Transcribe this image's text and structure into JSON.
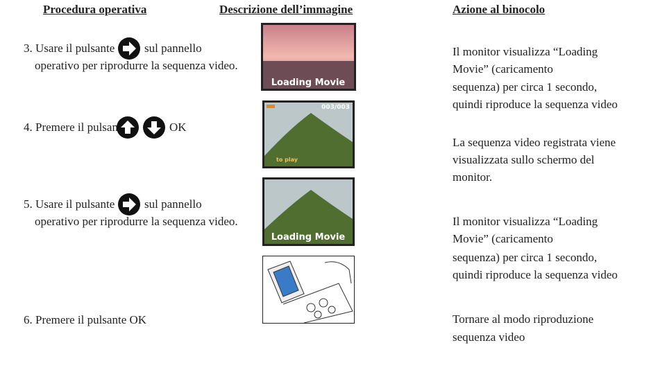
{
  "header": {
    "col1": "Procedura operativa",
    "col2": "Descrizione dell’immagine",
    "col3": "Azione al binocolo"
  },
  "rows": [
    {
      "step": [
        "3. Usare il pulsante",
        "sul pannello",
        "operativo per riprodurre la sequenza video."
      ],
      "image_text": [
        "Loading Movie"
      ],
      "action": [
        "Il monitor visualizza “Loading",
        "Movie” (caricamento",
        "sequenza) per circa 1 secondo,",
        "quindi riproduce la sequenza video"
      ]
    },
    {
      "step": [
        "4. Premere il pulsante",
        "OK"
      ],
      "image_text": [
        "003/003",
        "to play"
      ],
      "action": [
        "La sequenza video registrata viene",
        "visualizzata sullo schermo del",
        "monitor."
      ]
    },
    {
      "step": [
        "5. Usare il pulsante",
        "sul pannello",
        "operativo per riprodurre la sequenza video."
      ],
      "image_text": [
        "Loading Movie"
      ],
      "action": [
        "Il monitor visualizza “Loading",
        "Movie” (caricamento",
        "sequenza) per circa 1 secondo,",
        "quindi riproduce la sequenza video"
      ]
    },
    {
      "step": [
        "6. Premere il pulsante OK"
      ],
      "action": [
        "Tornare al modo riproduzione",
        "sequenza video"
      ]
    }
  ]
}
